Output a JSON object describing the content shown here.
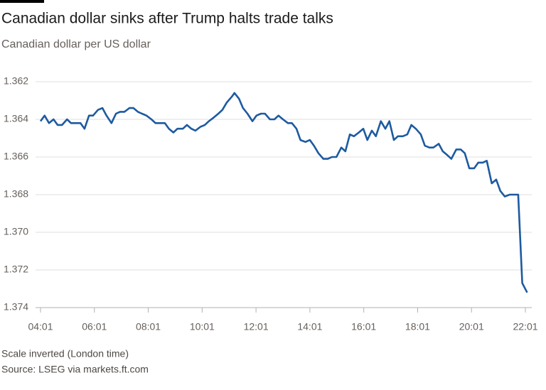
{
  "chart_data": {
    "type": "line",
    "title": "Canadian dollar sinks after Trump halts trade talks",
    "subtitle": "Canadian dollar per US dollar",
    "notes": [
      "Scale inverted (London time)",
      "Source: LSEG via markets.ft.com"
    ],
    "color": "#1d5aa0",
    "grid": true,
    "xlim": [
      241,
      1330
    ],
    "ylim": [
      1.374,
      1.362
    ],
    "xticks": [
      {
        "value": 241,
        "label": "04:01"
      },
      {
        "value": 361,
        "label": "06:01"
      },
      {
        "value": 481,
        "label": "08:01"
      },
      {
        "value": 601,
        "label": "10:01"
      },
      {
        "value": 721,
        "label": "12:01"
      },
      {
        "value": 841,
        "label": "14:01"
      },
      {
        "value": 961,
        "label": "16:01"
      },
      {
        "value": 1081,
        "label": "18:01"
      },
      {
        "value": 1201,
        "label": "20:01"
      },
      {
        "value": 1321,
        "label": "22:01"
      }
    ],
    "yticks": [
      1.362,
      1.364,
      1.366,
      1.368,
      {
        "value": 1.37,
        "label": "1.370"
      },
      1.372,
      1.374
    ],
    "x": [
      241,
      250,
      260,
      270,
      279,
      289,
      300,
      309,
      319,
      330,
      339,
      349,
      358,
      369,
      379,
      388,
      399,
      409,
      418,
      428,
      439,
      448,
      458,
      467,
      477,
      488,
      497,
      507,
      518,
      527,
      537,
      546,
      558,
      567,
      577,
      586,
      597,
      607,
      616,
      627,
      637,
      646,
      656,
      667,
      673,
      683,
      692,
      702,
      713,
      722,
      732,
      741,
      752,
      762,
      771,
      781,
      792,
      801,
      811,
      820,
      831,
      841,
      850,
      860,
      871,
      881,
      890,
      900,
      911,
      920,
      930,
      939,
      950,
      960,
      969,
      979,
      988,
      999,
      1009,
      1018,
      1028,
      1037,
      1048,
      1058,
      1067,
      1077,
      1088,
      1097,
      1107,
      1116,
      1128,
      1137,
      1147,
      1156,
      1167,
      1177,
      1186,
      1196,
      1207,
      1216,
      1226,
      1235,
      1246,
      1256,
      1265,
      1275,
      1286,
      1296,
      1305,
      1314,
      1325
    ],
    "values": [
      1.3641,
      1.3638,
      1.3642,
      1.364,
      1.3643,
      1.3643,
      1.364,
      1.3642,
      1.3642,
      1.3642,
      1.3645,
      1.3638,
      1.3638,
      1.3635,
      1.3634,
      1.3638,
      1.3642,
      1.3637,
      1.3636,
      1.3636,
      1.3634,
      1.3634,
      1.3636,
      1.3637,
      1.3638,
      1.364,
      1.3642,
      1.3642,
      1.3642,
      1.3645,
      1.3647,
      1.3645,
      1.3645,
      1.3643,
      1.3645,
      1.3646,
      1.3644,
      1.3643,
      1.3641,
      1.3639,
      1.3637,
      1.3635,
      1.3631,
      1.3628,
      1.3626,
      1.3629,
      1.3634,
      1.3637,
      1.3641,
      1.3638,
      1.3637,
      1.3637,
      1.364,
      1.364,
      1.3638,
      1.364,
      1.3642,
      1.3642,
      1.3645,
      1.3651,
      1.3652,
      1.3651,
      1.3654,
      1.3658,
      1.3661,
      1.3661,
      1.366,
      1.366,
      1.3655,
      1.3657,
      1.3648,
      1.3649,
      1.3647,
      1.3645,
      1.3651,
      1.3646,
      1.3649,
      1.3641,
      1.3645,
      1.3641,
      1.3651,
      1.3649,
      1.3649,
      1.3648,
      1.3643,
      1.3645,
      1.3648,
      1.3654,
      1.3655,
      1.3655,
      1.3653,
      1.3657,
      1.3659,
      1.3661,
      1.3656,
      1.3656,
      1.3658,
      1.3666,
      1.3666,
      1.3663,
      1.3663,
      1.3662,
      1.3674,
      1.3672,
      1.3678,
      1.3681,
      1.368,
      1.368,
      1.368,
      1.3727,
      1.3732
    ]
  }
}
